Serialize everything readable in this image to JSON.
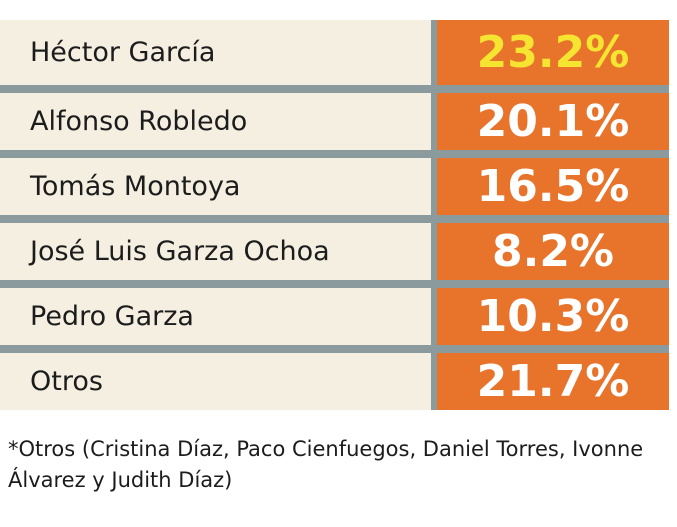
{
  "chart_data": {
    "type": "table",
    "rows": [
      {
        "name": "Héctor García",
        "value": "23.2%",
        "highlight": true
      },
      {
        "name": "Alfonso Robledo",
        "value": "20.1%",
        "highlight": false
      },
      {
        "name": "Tomás Montoya",
        "value": "16.5%",
        "highlight": false
      },
      {
        "name": "José Luis Garza Ochoa",
        "value": "8.2%",
        "highlight": false
      },
      {
        "name": "Pedro Garza",
        "value": "10.3%",
        "highlight": false
      },
      {
        "name": "Otros",
        "value": "21.7%",
        "highlight": false
      }
    ],
    "footnote": "*Otros (Cristina Díaz, Paco Cienfuegos, Daniel Torres, Ivonne Álvarez  y Judith Díaz)"
  },
  "colors": {
    "value_bg": "#e8742c",
    "name_bg": "#f4efe1",
    "highlight_text": "#f5e430",
    "separator": "#8b9a9d"
  }
}
